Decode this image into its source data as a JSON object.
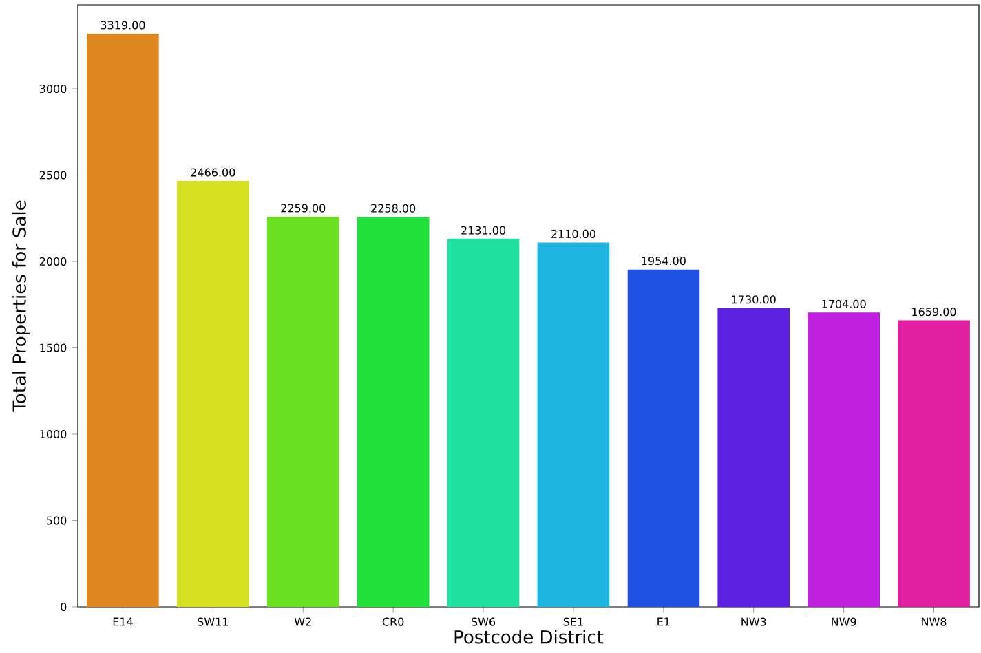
{
  "chart_data": {
    "type": "bar",
    "xlabel": "Postcode District",
    "ylabel": "Total Properties for Sale",
    "categories": [
      "E14",
      "SW11",
      "W2",
      "CR0",
      "SW6",
      "SE1",
      "E1",
      "NW3",
      "NW9",
      "NW8"
    ],
    "values": [
      3319,
      2466,
      2259,
      2258,
      2131,
      2110,
      1954,
      1730,
      1704,
      1659
    ],
    "value_labels": [
      "3319.00",
      "2466.00",
      "2259.00",
      "2258.00",
      "2131.00",
      "2110.00",
      "1954.00",
      "1730.00",
      "1704.00",
      "1659.00"
    ],
    "colors": [
      "#e0861f",
      "#d4e020",
      "#6be020",
      "#20e03c",
      "#20e0a0",
      "#20b4e0",
      "#2050e0",
      "#5c20e0",
      "#c020e0",
      "#e020a0"
    ],
    "ylim": [
      0,
      3486
    ],
    "yticks": [
      0,
      500,
      1000,
      1500,
      2000,
      2500,
      3000
    ]
  }
}
